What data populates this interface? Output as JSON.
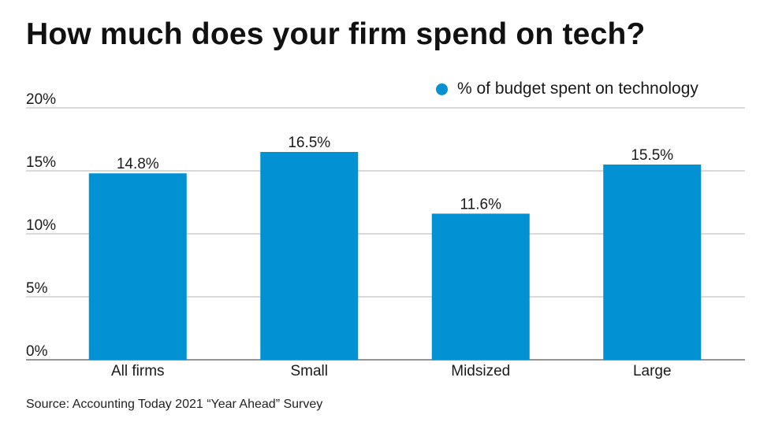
{
  "chart_data": {
    "type": "bar",
    "title": "How much does your firm spend on tech?",
    "categories": [
      "All firms",
      "Small",
      "Midsized",
      "Large"
    ],
    "series": [
      {
        "name": "% of budget spent on technology",
        "values": [
          14.8,
          16.5,
          11.6,
          15.5
        ],
        "labels": [
          "14.8%",
          "16.5%",
          "11.6%",
          "15.5%"
        ]
      }
    ],
    "yticks": [
      0,
      5,
      10,
      15,
      20
    ],
    "ytick_labels": [
      "0%",
      "5%",
      "10%",
      "15%",
      "20%"
    ],
    "ylim": [
      0,
      20
    ],
    "xlabel": "",
    "ylabel": "",
    "grid": true,
    "legend_position": "top-right",
    "source": "Source: Accounting Today 2021 “Year Ahead” Survey"
  },
  "colors": {
    "bar": "#0292d3",
    "grid": "#b5b5b5",
    "axis": "#555555"
  }
}
